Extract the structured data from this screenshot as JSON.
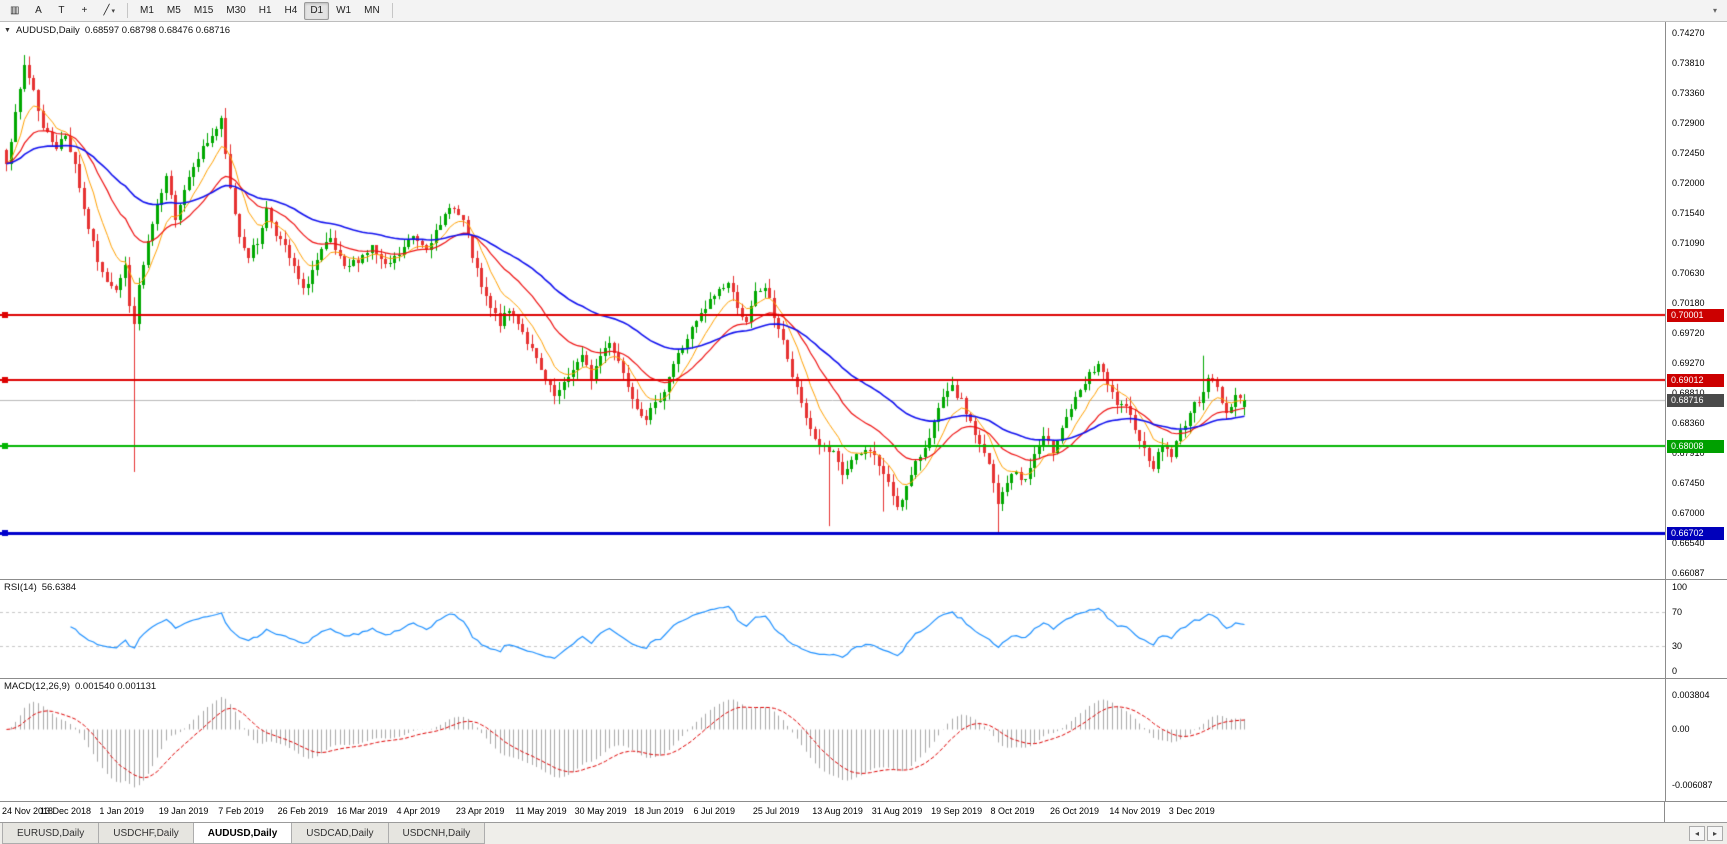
{
  "toolbar": {
    "tools": [
      {
        "name": "chart-bars-icon",
        "glyph": "▥"
      },
      {
        "name": "cursor-tool-button",
        "glyph": "A"
      },
      {
        "name": "text-tool-button",
        "glyph": "T"
      },
      {
        "name": "crosshair-tool-button",
        "glyph": "+"
      },
      {
        "name": "trendline-tools-button",
        "glyph": "╱",
        "caret": "▾"
      }
    ],
    "timeframes": [
      {
        "label": "M1",
        "name": "timeframe-m1"
      },
      {
        "label": "M5",
        "name": "timeframe-m5"
      },
      {
        "label": "M15",
        "name": "timeframe-m15"
      },
      {
        "label": "M30",
        "name": "timeframe-m30"
      },
      {
        "label": "H1",
        "name": "timeframe-h1"
      },
      {
        "label": "H4",
        "name": "timeframe-h4"
      },
      {
        "label": "D1",
        "name": "timeframe-d1",
        "active": true
      },
      {
        "label": "W1",
        "name": "timeframe-w1"
      },
      {
        "label": "MN",
        "name": "timeframe-mn"
      }
    ],
    "overflow_glyph": "▾"
  },
  "chart": {
    "title": {
      "collapse_glyph": "▼",
      "symbol": "AUDUSD,Daily",
      "ohlc": "0.68597 0.68798 0.68476 0.68716"
    },
    "price_scale": {
      "top": 0.7443,
      "bottom": 0.66
    },
    "x": {
      "start": 6,
      "step": 4.57
    },
    "price_axis": {
      "ticks": [
        {
          "label": "0.74270",
          "value": 0.7427
        },
        {
          "label": "0.73810",
          "value": 0.7381
        },
        {
          "label": "0.73360",
          "value": 0.7336
        },
        {
          "label": "0.72900",
          "value": 0.729
        },
        {
          "label": "0.72450",
          "value": 0.7245
        },
        {
          "label": "0.72000",
          "value": 0.72
        },
        {
          "label": "0.71540",
          "value": 0.7154
        },
        {
          "label": "0.71090",
          "value": 0.7109
        },
        {
          "label": "0.70630",
          "value": 0.7063
        },
        {
          "label": "0.70180",
          "value": 0.7018
        },
        {
          "label": "0.69720",
          "value": 0.6972
        },
        {
          "label": "0.69270",
          "value": 0.6927
        },
        {
          "label": "0.68810",
          "value": 0.6881
        },
        {
          "label": "0.68360",
          "value": 0.6836
        },
        {
          "label": "0.67910",
          "value": 0.6791
        },
        {
          "label": "0.67450",
          "value": 0.6745
        },
        {
          "label": "0.67000",
          "value": 0.67
        },
        {
          "label": "0.66540",
          "value": 0.6654
        },
        {
          "label": "0.66087",
          "value": 0.66087
        }
      ],
      "badges": [
        {
          "label": "0.70001",
          "value": 0.70001,
          "bg": "#CC0000",
          "name": "resistance-level-badge-1"
        },
        {
          "label": "0.69012",
          "value": 0.69012,
          "bg": "#CC0000",
          "name": "resistance-level-badge-2"
        },
        {
          "label": "0.68716",
          "value": 0.68716,
          "bg": "#4A4A4A",
          "name": "current-price-badge"
        },
        {
          "label": "0.68008",
          "value": 0.68008,
          "bg": "#00A000",
          "name": "support-level-badge"
        },
        {
          "label": "0.66702",
          "value": 0.66702,
          "bg": "#0000BB",
          "name": "support-level-blue-badge"
        }
      ]
    },
    "current_price": {
      "value": 0.68716,
      "color": "#B8B8B8"
    },
    "hlines": [
      {
        "value": 0.70001,
        "color": "#DD0000",
        "width": 2,
        "handle": true
      },
      {
        "value": 0.69012,
        "color": "#DD0000",
        "width": 2,
        "handle": true
      },
      {
        "value": 0.68008,
        "color": "#00B400",
        "width": 2,
        "handle": true
      },
      {
        "value": 0.66702,
        "color": "#0000CC",
        "width": 3,
        "handle": true
      }
    ]
  },
  "rsi": {
    "name": "RSI(14)",
    "value": "56.6384",
    "period": 14,
    "color": "#1E90FF",
    "levels": [
      70,
      30
    ],
    "ticks": [
      {
        "label": "100",
        "value": 100
      },
      {
        "label": "70",
        "value": 70
      },
      {
        "label": "30",
        "value": 30
      },
      {
        "label": "0",
        "value": 0
      }
    ]
  },
  "macd": {
    "name": "MACD(12,26,9)",
    "values": "0.001540 0.001131",
    "fast": 12,
    "slow": 26,
    "signal": 9,
    "histogram_color": "#A8A8A8",
    "signal_color": "#DD0000",
    "scale": {
      "top": 0.0055,
      "bottom": -0.0078
    },
    "ticks": [
      {
        "label": "0.003804",
        "value": 0.003804
      },
      {
        "label": "0.00",
        "value": 0
      },
      {
        "label": "-0.006087",
        "value": -0.006087
      }
    ]
  },
  "date_axis": {
    "labels": [
      {
        "text": "24 Nov 2018",
        "index": 1
      },
      {
        "text": "13 Dec 2018",
        "index": 14
      },
      {
        "text": "1 Jan 2019",
        "index": 27
      },
      {
        "text": "19 Jan 2019",
        "index": 40
      },
      {
        "text": "7 Feb 2019",
        "index": 53
      },
      {
        "text": "26 Feb 2019",
        "index": 66
      },
      {
        "text": "16 Mar 2019",
        "index": 79
      },
      {
        "text": "4 Apr 2019",
        "index": 92
      },
      {
        "text": "23 Apr 2019",
        "index": 105
      },
      {
        "text": "11 May 2019",
        "index": 118
      },
      {
        "text": "30 May 2019",
        "index": 131
      },
      {
        "text": "18 Jun 2019",
        "index": 144
      },
      {
        "text": "6 Jul 2019",
        "index": 157
      },
      {
        "text": "25 Jul 2019",
        "index": 170
      },
      {
        "text": "13 Aug 2019",
        "index": 183
      },
      {
        "text": "31 Aug 2019",
        "index": 196
      },
      {
        "text": "19 Sep 2019",
        "index": 209
      },
      {
        "text": "8 Oct 2019",
        "index": 222
      },
      {
        "text": "26 Oct 2019",
        "index": 235
      },
      {
        "text": "14 Nov 2019",
        "index": 248
      },
      {
        "text": "3 Dec 2019",
        "index": 261
      }
    ]
  },
  "tabs": {
    "items": [
      {
        "label": "EURUSD,Daily",
        "name": "tab-eurusd-daily"
      },
      {
        "label": "USDCHF,Daily",
        "name": "tab-usdchf-daily"
      },
      {
        "label": "AUDUSD,Daily",
        "name": "tab-audusd-daily",
        "active": true
      },
      {
        "label": "USDCAD,Daily",
        "name": "tab-usdcad-daily"
      },
      {
        "label": "USDCNH,Daily",
        "name": "tab-usdcnh-daily"
      }
    ],
    "left_arrow": "◂",
    "right_arrow": "▸"
  },
  "chart_data": {
    "type": "candlestick",
    "symbol": "AUDUSD",
    "timeframe": "Daily",
    "last_candle": {
      "open": 0.68597,
      "high": 0.68798,
      "low": 0.68476,
      "close": 0.68716
    },
    "key_levels": [
      0.70001,
      0.69012,
      0.68008,
      0.66702
    ],
    "candle_count": 272,
    "seed": 7,
    "up_color": "#00A800",
    "down_color": "#E63232",
    "price_path": [
      [
        0,
        0.7235
      ],
      [
        2,
        0.73
      ],
      [
        4,
        0.7378
      ],
      [
        6,
        0.734
      ],
      [
        8,
        0.7282
      ],
      [
        11,
        0.7255
      ],
      [
        13,
        0.727
      ],
      [
        15,
        0.723
      ],
      [
        17,
        0.716
      ],
      [
        19,
        0.7105
      ],
      [
        21,
        0.706
      ],
      [
        24,
        0.7042
      ],
      [
        26,
        0.7075
      ],
      [
        27,
        0.701
      ],
      [
        28,
        0.6992
      ],
      [
        29,
        0.704
      ],
      [
        31,
        0.711
      ],
      [
        33,
        0.716
      ],
      [
        35,
        0.7205
      ],
      [
        37,
        0.715
      ],
      [
        39,
        0.719
      ],
      [
        41,
        0.723
      ],
      [
        44,
        0.7262
      ],
      [
        47,
        0.7292
      ],
      [
        49,
        0.719
      ],
      [
        51,
        0.712
      ],
      [
        53,
        0.709
      ],
      [
        55,
        0.711
      ],
      [
        57,
        0.716
      ],
      [
        59,
        0.7125
      ],
      [
        61,
        0.71
      ],
      [
        63,
        0.707
      ],
      [
        65,
        0.7035
      ],
      [
        67,
        0.7068
      ],
      [
        69,
        0.7095
      ],
      [
        71,
        0.7112
      ],
      [
        74,
        0.7068
      ],
      [
        77,
        0.7085
      ],
      [
        80,
        0.7102
      ],
      [
        83,
        0.707
      ],
      [
        86,
        0.7092
      ],
      [
        89,
        0.7118
      ],
      [
        92,
        0.7105
      ],
      [
        95,
        0.7132
      ],
      [
        97,
        0.7168
      ],
      [
        100,
        0.714
      ],
      [
        102,
        0.7088
      ],
      [
        104,
        0.704
      ],
      [
        106,
        0.7008
      ],
      [
        108,
        0.6988
      ],
      [
        110,
        0.7005
      ],
      [
        112,
        0.699
      ],
      [
        114,
        0.696
      ],
      [
        116,
        0.693
      ],
      [
        118,
        0.6898
      ],
      [
        120,
        0.6875
      ],
      [
        122,
        0.6892
      ],
      [
        124,
        0.692
      ],
      [
        126,
        0.6935
      ],
      [
        128,
        0.6905
      ],
      [
        130,
        0.6938
      ],
      [
        132,
        0.6962
      ],
      [
        134,
        0.693
      ],
      [
        136,
        0.6895
      ],
      [
        138,
        0.6862
      ],
      [
        140,
        0.6845
      ],
      [
        142,
        0.6862
      ],
      [
        144,
        0.6888
      ],
      [
        146,
        0.6925
      ],
      [
        148,
        0.6952
      ],
      [
        150,
        0.6978
      ],
      [
        152,
        0.6998
      ],
      [
        154,
        0.702
      ],
      [
        156,
        0.7038
      ],
      [
        158,
        0.7048
      ],
      [
        160,
        0.7015
      ],
      [
        162,
        0.6985
      ],
      [
        164,
        0.7032
      ],
      [
        166,
        0.7042
      ],
      [
        168,
        0.6998
      ],
      [
        170,
        0.6962
      ],
      [
        171,
        0.6928
      ],
      [
        173,
        0.6885
      ],
      [
        175,
        0.6845
      ],
      [
        177,
        0.6812
      ],
      [
        179,
        0.6795
      ],
      [
        181,
        0.6788
      ],
      [
        183,
        0.6758
      ],
      [
        185,
        0.6778
      ],
      [
        187,
        0.6788
      ],
      [
        189,
        0.6798
      ],
      [
        191,
        0.6772
      ],
      [
        193,
        0.6742
      ],
      [
        195,
        0.6712
      ],
      [
        197,
        0.6738
      ],
      [
        199,
        0.6772
      ],
      [
        201,
        0.6802
      ],
      [
        203,
        0.6835
      ],
      [
        205,
        0.6872
      ],
      [
        207,
        0.6888
      ],
      [
        209,
        0.6868
      ],
      [
        211,
        0.6838
      ],
      [
        213,
        0.6802
      ],
      [
        215,
        0.6772
      ],
      [
        217,
        0.6712
      ],
      [
        219,
        0.6748
      ],
      [
        221,
        0.6762
      ],
      [
        223,
        0.6748
      ],
      [
        225,
        0.6788
      ],
      [
        227,
        0.6812
      ],
      [
        229,
        0.6795
      ],
      [
        231,
        0.6832
      ],
      [
        233,
        0.6858
      ],
      [
        235,
        0.6882
      ],
      [
        237,
        0.6908
      ],
      [
        239,
        0.6925
      ],
      [
        241,
        0.6892
      ],
      [
        243,
        0.6865
      ],
      [
        245,
        0.6855
      ],
      [
        247,
        0.6832
      ],
      [
        249,
        0.6795
      ],
      [
        251,
        0.6772
      ],
      [
        253,
        0.6802
      ],
      [
        255,
        0.6788
      ],
      [
        257,
        0.6822
      ],
      [
        259,
        0.6852
      ],
      [
        261,
        0.6872
      ],
      [
        263,
        0.6905
      ],
      [
        265,
        0.6888
      ],
      [
        267,
        0.6852
      ],
      [
        269,
        0.6878
      ],
      [
        271,
        0.68716
      ]
    ],
    "wick_lows": {
      "28": 0.6762,
      "180": 0.668,
      "192": 0.6702,
      "197": 0.6705,
      "217": 0.6671
    },
    "wick_highs": {
      "4": 0.7393,
      "239": 0.693,
      "262": 0.6938
    },
    "moving_averages": [
      {
        "period": 8,
        "color": "#FFA000",
        "width": 1
      },
      {
        "period": 21,
        "color": "#EE1111",
        "width": 1.2
      },
      {
        "period": 50,
        "color": "#1111EE",
        "width": 1.6
      }
    ]
  }
}
